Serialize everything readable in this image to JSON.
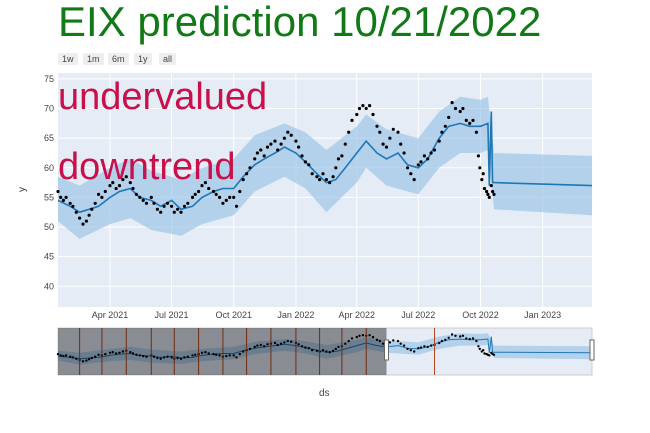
{
  "title": "EIX prediction 10/21/2022",
  "range_buttons": [
    "1w",
    "1m",
    "6m",
    "1y",
    "all"
  ],
  "annotations": [
    "undervalued",
    "downtrend"
  ],
  "colors": {
    "title": "#117a17",
    "annotation": "#c8104a",
    "forecast_line": "#1f77b4",
    "band": "#9fc6e7",
    "actual": "#000000",
    "plot_bg": "#e5ecf6",
    "changepoint": "#b8461f"
  },
  "chart_data": {
    "type": "line",
    "title": "EIX prediction 10/21/2022",
    "xlabel": "ds",
    "ylabel": "y",
    "x_ticks": [
      "Apr 2021",
      "Jul 2021",
      "Oct 2021",
      "Jan 2022",
      "Apr 2022",
      "Jul 2022",
      "Oct 2022",
      "Jan 2023"
    ],
    "y_ticks": [
      40,
      45,
      50,
      55,
      60,
      65,
      70,
      75
    ],
    "ylim": [
      36.5,
      76
    ],
    "x_range": [
      "2021-01-14",
      "2023-03-15"
    ],
    "grid": true,
    "series": [
      {
        "kind": "forecast",
        "points": [
          [
            "2021-01-14",
            54.5
          ],
          [
            "2021-02-01",
            53.5
          ],
          [
            "2021-02-15",
            52.5
          ],
          [
            "2021-03-01",
            53
          ],
          [
            "2021-03-15",
            53.5
          ],
          [
            "2021-04-01",
            55
          ],
          [
            "2021-04-15",
            56
          ],
          [
            "2021-05-01",
            56.5
          ],
          [
            "2021-05-15",
            55
          ],
          [
            "2021-06-01",
            54.5
          ],
          [
            "2021-06-15",
            53.5
          ],
          [
            "2021-07-01",
            54.5
          ],
          [
            "2021-07-15",
            53
          ],
          [
            "2021-08-01",
            53.5
          ],
          [
            "2021-08-15",
            55
          ],
          [
            "2021-09-01",
            56
          ],
          [
            "2021-09-15",
            56.5
          ],
          [
            "2021-10-01",
            56.5
          ],
          [
            "2021-10-15",
            58.5
          ],
          [
            "2021-11-01",
            60.5
          ],
          [
            "2021-11-15",
            61.5
          ],
          [
            "2021-12-01",
            62.5
          ],
          [
            "2021-12-15",
            63.5
          ],
          [
            "2022-01-01",
            62.5
          ],
          [
            "2022-01-15",
            61
          ],
          [
            "2022-02-01",
            59
          ],
          [
            "2022-02-15",
            57.5
          ],
          [
            "2022-03-01",
            58
          ],
          [
            "2022-03-15",
            60
          ],
          [
            "2022-04-01",
            62.5
          ],
          [
            "2022-04-15",
            64.5
          ],
          [
            "2022-05-01",
            62.5
          ],
          [
            "2022-05-15",
            61.5
          ],
          [
            "2022-06-01",
            62.5
          ],
          [
            "2022-06-15",
            60.5
          ],
          [
            "2022-07-01",
            60
          ],
          [
            "2022-07-15",
            61.5
          ],
          [
            "2022-08-01",
            65
          ],
          [
            "2022-08-15",
            67
          ],
          [
            "2022-09-01",
            67.5
          ],
          [
            "2022-09-15",
            67
          ],
          [
            "2022-10-01",
            67
          ],
          [
            "2022-10-12",
            67.5
          ],
          [
            "2022-10-14",
            57
          ],
          [
            "2022-10-17",
            69.5
          ],
          [
            "2022-10-19",
            57.5
          ],
          [
            "2022-10-21",
            57.5
          ],
          [
            "2023-03-15",
            57
          ]
        ]
      },
      {
        "kind": "uncertainty_band",
        "upper": [
          [
            "2021-01-14",
            58.5
          ],
          [
            "2021-02-15",
            57
          ],
          [
            "2021-04-01",
            60
          ],
          [
            "2021-05-01",
            61.5
          ],
          [
            "2021-06-01",
            59.5
          ],
          [
            "2021-07-15",
            58
          ],
          [
            "2021-08-15",
            60
          ],
          [
            "2021-10-01",
            61.5
          ],
          [
            "2021-11-01",
            65.5
          ],
          [
            "2021-12-15",
            67.5
          ],
          [
            "2022-01-15",
            66
          ],
          [
            "2022-02-15",
            63
          ],
          [
            "2022-04-01",
            67
          ],
          [
            "2022-04-15",
            69
          ],
          [
            "2022-05-15",
            66.5
          ],
          [
            "2022-07-01",
            65
          ],
          [
            "2022-08-01",
            69.5
          ],
          [
            "2022-09-01",
            72
          ],
          [
            "2022-10-01",
            71.5
          ],
          [
            "2022-10-12",
            72
          ],
          [
            "2022-10-21",
            62.5
          ],
          [
            "2023-03-15",
            62
          ]
        ],
        "lower": [
          [
            "2021-01-14",
            51
          ],
          [
            "2021-02-15",
            48
          ],
          [
            "2021-04-01",
            50.5
          ],
          [
            "2021-05-01",
            51.5
          ],
          [
            "2021-06-01",
            49.5
          ],
          [
            "2021-07-15",
            48.5
          ],
          [
            "2021-08-15",
            50.5
          ],
          [
            "2021-10-01",
            52
          ],
          [
            "2021-11-01",
            56
          ],
          [
            "2021-12-15",
            58.5
          ],
          [
            "2022-01-15",
            56.5
          ],
          [
            "2022-02-15",
            52.5
          ],
          [
            "2022-04-01",
            57.5
          ],
          [
            "2022-04-15",
            60
          ],
          [
            "2022-05-15",
            57
          ],
          [
            "2022-07-01",
            55.5
          ],
          [
            "2022-08-01",
            60
          ],
          [
            "2022-09-01",
            62.5
          ],
          [
            "2022-10-01",
            62.5
          ],
          [
            "2022-10-12",
            63
          ],
          [
            "2022-10-21",
            53
          ],
          [
            "2023-03-15",
            52
          ]
        ]
      },
      {
        "kind": "actual",
        "points": [
          [
            "2021-01-14",
            56
          ],
          [
            "2021-01-18",
            55
          ],
          [
            "2021-01-22",
            54.5
          ],
          [
            "2021-01-26",
            55
          ],
          [
            "2021-02-01",
            54
          ],
          [
            "2021-02-05",
            53.5
          ],
          [
            "2021-02-10",
            52.5
          ],
          [
            "2021-02-15",
            51.5
          ],
          [
            "2021-02-20",
            50.5
          ],
          [
            "2021-02-25",
            51
          ],
          [
            "2021-03-01",
            52
          ],
          [
            "2021-03-05",
            53
          ],
          [
            "2021-03-10",
            54
          ],
          [
            "2021-03-15",
            55.5
          ],
          [
            "2021-03-20",
            55
          ],
          [
            "2021-03-25",
            56
          ],
          [
            "2021-04-01",
            57
          ],
          [
            "2021-04-05",
            57.5
          ],
          [
            "2021-04-10",
            56.5
          ],
          [
            "2021-04-15",
            57
          ],
          [
            "2021-04-20",
            58
          ],
          [
            "2021-04-25",
            58.5
          ],
          [
            "2021-05-01",
            57.5
          ],
          [
            "2021-05-05",
            56.5
          ],
          [
            "2021-05-10",
            55.5
          ],
          [
            "2021-05-15",
            55
          ],
          [
            "2021-05-20",
            54.5
          ],
          [
            "2021-05-25",
            54
          ],
          [
            "2021-06-01",
            55
          ],
          [
            "2021-06-05",
            54
          ],
          [
            "2021-06-10",
            53
          ],
          [
            "2021-06-15",
            52.5
          ],
          [
            "2021-06-20",
            53.5
          ],
          [
            "2021-06-25",
            54
          ],
          [
            "2021-07-01",
            53.5
          ],
          [
            "2021-07-05",
            52.5
          ],
          [
            "2021-07-10",
            53
          ],
          [
            "2021-07-15",
            52.5
          ],
          [
            "2021-07-20",
            53.5
          ],
          [
            "2021-07-25",
            54
          ],
          [
            "2021-08-01",
            55
          ],
          [
            "2021-08-05",
            55.5
          ],
          [
            "2021-08-10",
            56
          ],
          [
            "2021-08-15",
            57
          ],
          [
            "2021-08-20",
            57.5
          ],
          [
            "2021-08-25",
            56.5
          ],
          [
            "2021-09-01",
            56
          ],
          [
            "2021-09-05",
            55.5
          ],
          [
            "2021-09-10",
            55
          ],
          [
            "2021-09-15",
            54
          ],
          [
            "2021-09-20",
            54.5
          ],
          [
            "2021-09-25",
            55
          ],
          [
            "2021-10-01",
            55
          ],
          [
            "2021-10-05",
            53.5
          ],
          [
            "2021-10-10",
            56
          ],
          [
            "2021-10-15",
            58
          ],
          [
            "2021-10-20",
            59
          ],
          [
            "2021-10-25",
            60
          ],
          [
            "2021-11-01",
            61.5
          ],
          [
            "2021-11-05",
            62.5
          ],
          [
            "2021-11-10",
            63
          ],
          [
            "2021-11-15",
            62
          ],
          [
            "2021-11-20",
            63.5
          ],
          [
            "2021-11-25",
            64
          ],
          [
            "2021-12-01",
            64.5
          ],
          [
            "2021-12-05",
            63
          ],
          [
            "2021-12-10",
            64
          ],
          [
            "2021-12-15",
            65
          ],
          [
            "2021-12-20",
            66
          ],
          [
            "2021-12-25",
            65.5
          ],
          [
            "2022-01-01",
            64.5
          ],
          [
            "2022-01-05",
            63.5
          ],
          [
            "2022-01-10",
            62
          ],
          [
            "2022-01-15",
            61
          ],
          [
            "2022-01-20",
            60.5
          ],
          [
            "2022-01-25",
            59
          ],
          [
            "2022-02-01",
            58.5
          ],
          [
            "2022-02-05",
            58
          ],
          [
            "2022-02-10",
            59
          ],
          [
            "2022-02-15",
            58
          ],
          [
            "2022-02-20",
            57.5
          ],
          [
            "2022-02-25",
            58.5
          ],
          [
            "2022-03-01",
            60
          ],
          [
            "2022-03-05",
            61.5
          ],
          [
            "2022-03-10",
            62
          ],
          [
            "2022-03-15",
            64
          ],
          [
            "2022-03-20",
            66
          ],
          [
            "2022-03-25",
            68
          ],
          [
            "2022-04-01",
            69
          ],
          [
            "2022-04-05",
            70
          ],
          [
            "2022-04-10",
            70.5
          ],
          [
            "2022-04-15",
            70
          ],
          [
            "2022-04-20",
            70.5
          ],
          [
            "2022-04-25",
            69
          ],
          [
            "2022-05-01",
            67
          ],
          [
            "2022-05-05",
            66
          ],
          [
            "2022-05-10",
            64
          ],
          [
            "2022-05-15",
            63.5
          ],
          [
            "2022-05-20",
            65
          ],
          [
            "2022-05-25",
            66.5
          ],
          [
            "2022-06-01",
            66
          ],
          [
            "2022-06-05",
            64
          ],
          [
            "2022-06-10",
            62.5
          ],
          [
            "2022-06-15",
            60
          ],
          [
            "2022-06-20",
            59
          ],
          [
            "2022-06-25",
            58
          ],
          [
            "2022-07-01",
            60.5
          ],
          [
            "2022-07-05",
            61
          ],
          [
            "2022-07-10",
            62
          ],
          [
            "2022-07-15",
            61.5
          ],
          [
            "2022-07-20",
            62.5
          ],
          [
            "2022-07-25",
            63
          ],
          [
            "2022-08-01",
            64.5
          ],
          [
            "2022-08-05",
            66
          ],
          [
            "2022-08-10",
            67
          ],
          [
            "2022-08-15",
            68.5
          ],
          [
            "2022-08-20",
            71
          ],
          [
            "2022-08-25",
            70
          ],
          [
            "2022-09-01",
            69.5
          ],
          [
            "2022-09-05",
            70
          ],
          [
            "2022-09-10",
            68
          ],
          [
            "2022-09-15",
            67.5
          ],
          [
            "2022-09-20",
            68
          ],
          [
            "2022-09-25",
            66
          ],
          [
            "2022-09-28",
            62
          ],
          [
            "2022-09-30",
            60
          ],
          [
            "2022-10-03",
            58
          ],
          [
            "2022-10-05",
            59
          ],
          [
            "2022-10-07",
            56.5
          ],
          [
            "2022-10-10",
            56
          ],
          [
            "2022-10-12",
            55.5
          ],
          [
            "2022-10-14",
            55
          ],
          [
            "2022-10-17",
            57
          ],
          [
            "2022-10-19",
            56
          ],
          [
            "2022-10-21",
            55.5
          ]
        ]
      }
    ],
    "range_slider": {
      "window_start": "2022-05-15",
      "changepoints": [
        "2021-02-15",
        "2021-03-20",
        "2021-04-25",
        "2021-06-01",
        "2021-07-05",
        "2021-08-10",
        "2021-09-15",
        "2021-10-20",
        "2021-11-25",
        "2022-01-01",
        "2022-02-05",
        "2022-03-10",
        "2022-04-15",
        "2022-07-25"
      ]
    }
  }
}
